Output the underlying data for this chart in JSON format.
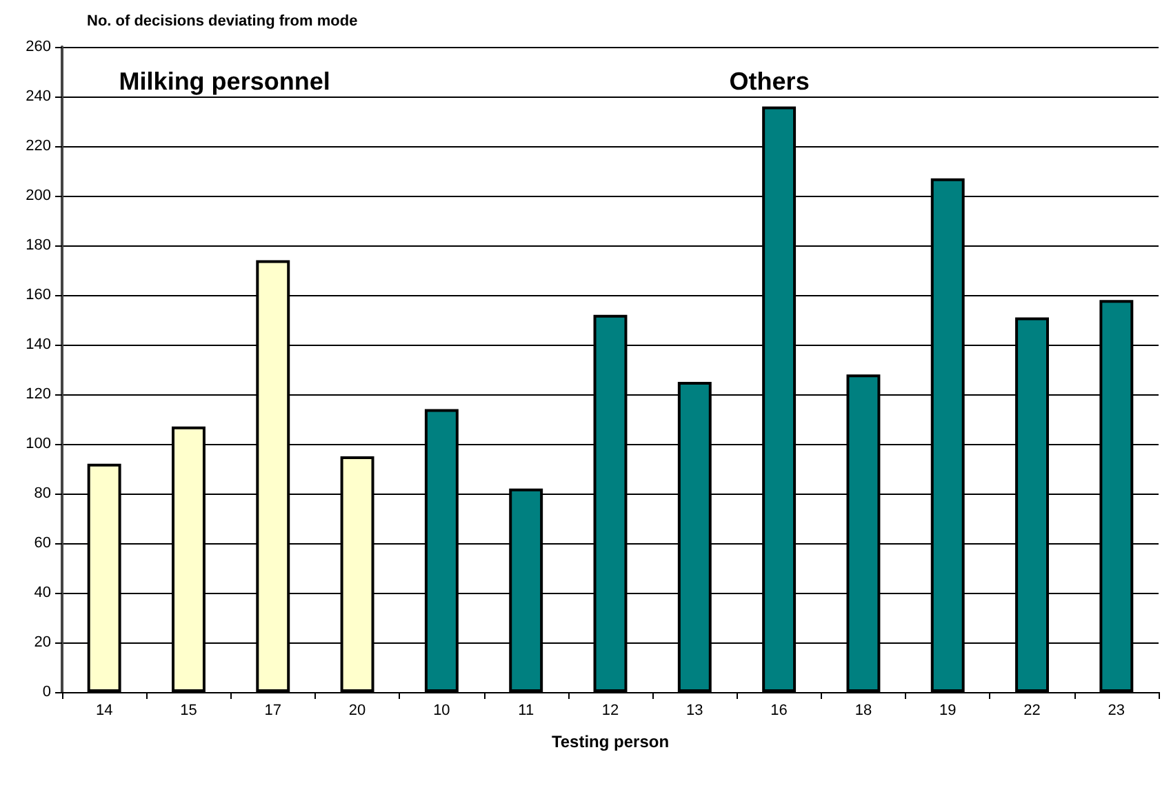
{
  "chart_data": {
    "type": "bar",
    "ylabel": "No. of decisions deviating from mode",
    "xlabel": "Testing person",
    "categories": [
      "14",
      "15",
      "17",
      "20",
      "10",
      "11",
      "12",
      "13",
      "16",
      "18",
      "19",
      "22",
      "23"
    ],
    "values": [
      92,
      107,
      174,
      95,
      114,
      82,
      152,
      125,
      236,
      128,
      207,
      151,
      158
    ],
    "colors": [
      "#ffffcc",
      "#ffffcc",
      "#ffffcc",
      "#ffffcc",
      "#008080",
      "#008080",
      "#008080",
      "#008080",
      "#008080",
      "#008080",
      "#008080",
      "#008080",
      "#008080"
    ],
    "ylim": [
      0,
      260
    ],
    "yticks": [
      0,
      20,
      40,
      60,
      80,
      100,
      120,
      140,
      160,
      180,
      200,
      220,
      240,
      260
    ],
    "grid": "y",
    "annotations": [
      "Milking personnel",
      "Others"
    ]
  }
}
